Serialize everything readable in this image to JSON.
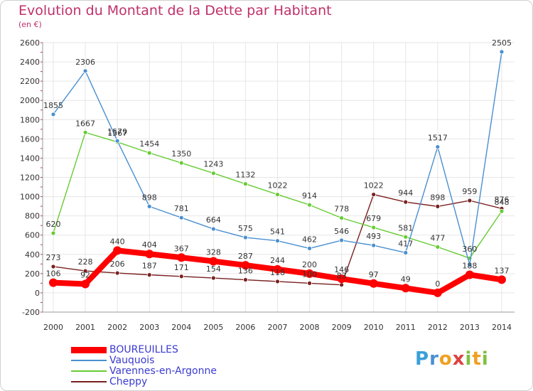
{
  "title": "Evolution du Montant de la Dette par Habitant",
  "subtitle": "(en €)",
  "logo": "Proxiti",
  "chart_data": {
    "type": "line",
    "title": "Evolution du Montant de la Dette par Habitant",
    "ylabel": "(en €)",
    "x": [
      "2000",
      "2001",
      "2002",
      "2003",
      "2004",
      "2005",
      "2006",
      "2007",
      "2008",
      "2009",
      "2010",
      "2011",
      "2012",
      "2013",
      "2014"
    ],
    "ylim": [
      -200,
      2600
    ],
    "yticks": [
      -200,
      0,
      200,
      400,
      600,
      800,
      1000,
      1200,
      1400,
      1600,
      1800,
      2000,
      2200,
      2400,
      2600
    ],
    "grid": true,
    "series": [
      {
        "name": "BOUREUILLES",
        "color": "#ff0000",
        "values": [
          106,
          92,
          440,
          404,
          367,
          328,
          287,
          244,
          200,
          146,
          97,
          49,
          0,
          188,
          137
        ],
        "labels": [
          "106",
          "92",
          "440",
          "404",
          "367",
          "328",
          "287",
          "244",
          "200",
          "146",
          "97",
          "49",
          "0",
          "188",
          "137"
        ]
      },
      {
        "name": "Vauquois",
        "color": "#4a8fd0",
        "values": [
          1855,
          2306,
          1579,
          898,
          781,
          664,
          575,
          541,
          462,
          546,
          493,
          417,
          1517,
          290,
          2505
        ],
        "labels": [
          "1855",
          "2306",
          "1579",
          "898",
          "781",
          "664",
          "575",
          "541",
          "462",
          "546",
          "493",
          "417",
          "1517",
          "",
          "2505"
        ]
      },
      {
        "name": "Varennes-en-Argonne",
        "color": "#66cc33",
        "values": [
          620,
          1667,
          1567,
          1454,
          1350,
          1243,
          1132,
          1022,
          914,
          778,
          679,
          581,
          477,
          360,
          848
        ],
        "labels": [
          "620",
          "1667",
          "1567",
          "1454",
          "1350",
          "1243",
          "1132",
          "1022",
          "914",
          "778",
          "679",
          "581",
          "477",
          "360",
          "848"
        ]
      },
      {
        "name": "Cheppy",
        "color": "#7a2020",
        "values": [
          273,
          228,
          206,
          187,
          171,
          154,
          136,
          118,
          100,
          83,
          1022,
          944,
          898,
          959,
          876
        ],
        "labels": [
          "273",
          "228",
          "206",
          "187",
          "171",
          "154",
          "136",
          "118",
          "100",
          "83",
          "1022",
          "944",
          "898",
          "959",
          "876"
        ]
      }
    ]
  }
}
